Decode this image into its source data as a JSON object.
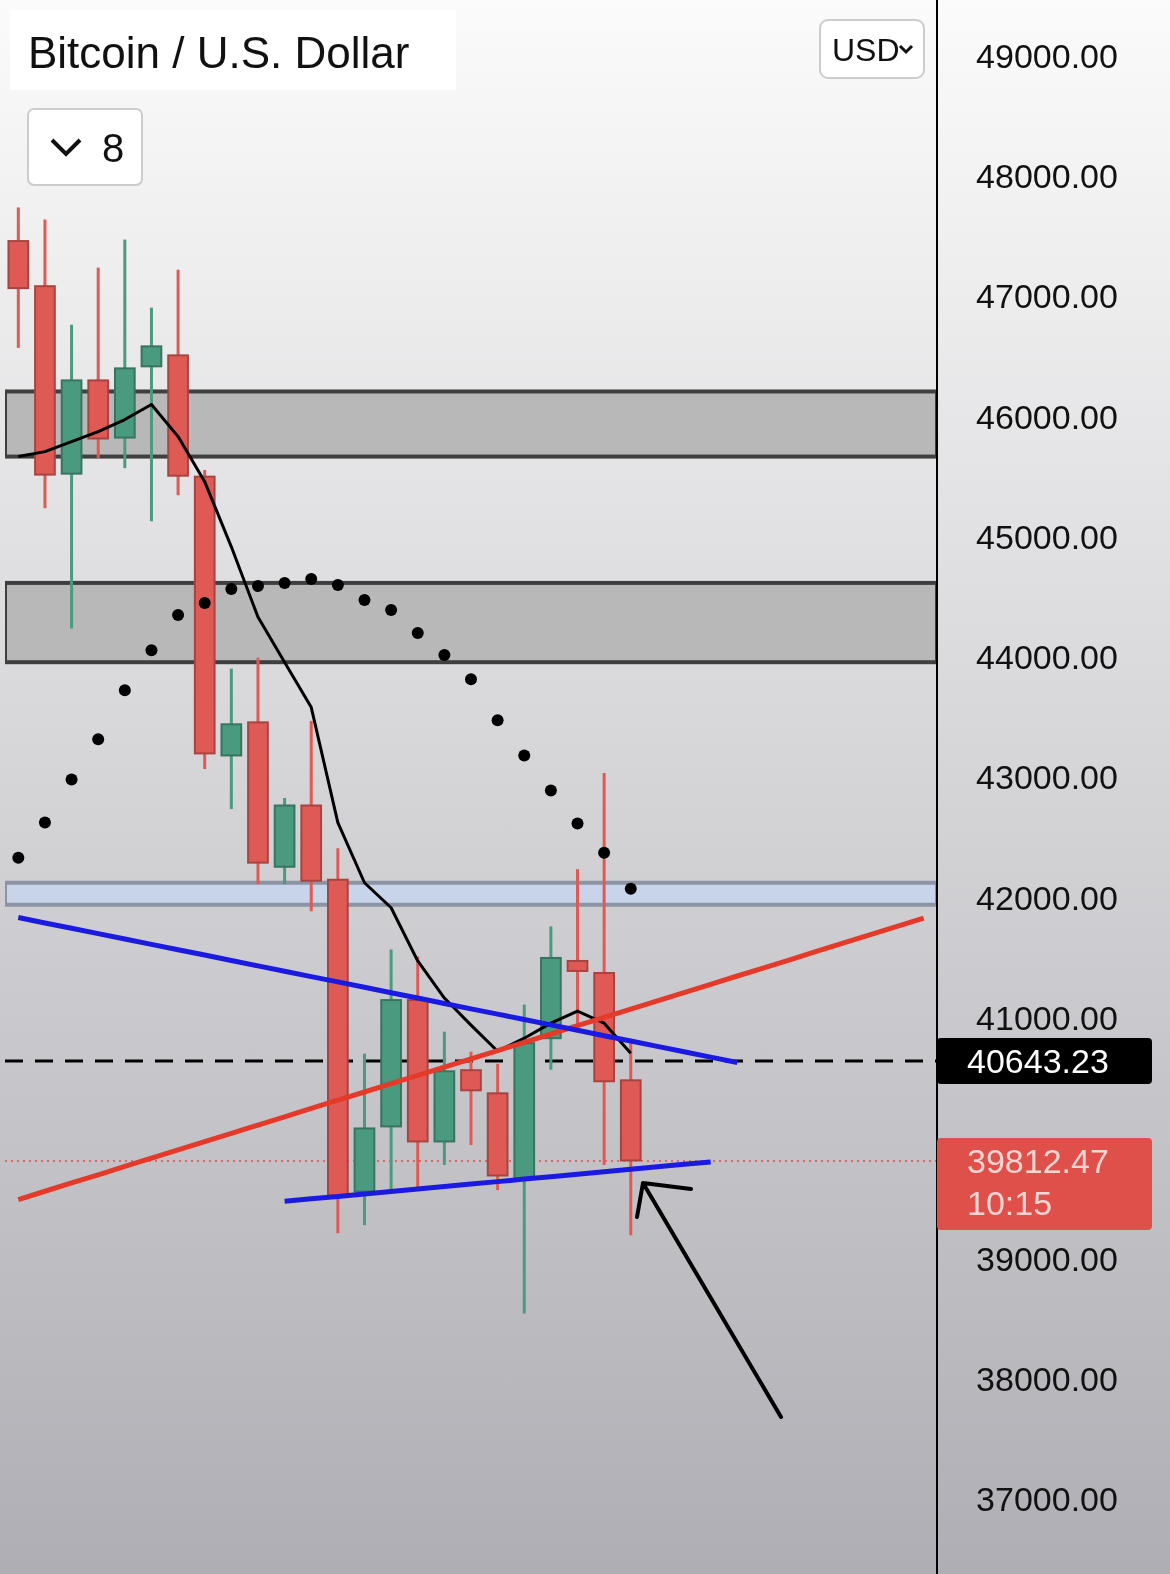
{
  "chart_data": {
    "type": "candlestick",
    "title": "Bitcoin / U.S. Dollar",
    "tick_labels": "y",
    "grid": false,
    "categories": [
      null,
      null,
      null,
      null,
      null,
      null,
      null,
      null,
      null,
      null,
      null,
      null,
      null,
      null,
      null,
      null,
      null,
      null,
      null,
      null,
      null,
      null,
      null,
      null,
      null,
      null,
      null,
      null,
      null,
      null,
      null,
      null,
      null,
      null,
      null
    ],
    "ylim": [
      36380,
      49420
    ],
    "yticks": [
      {
        "value": 37000,
        "label": "37000.00"
      },
      {
        "value": 38000,
        "label": "38000.00"
      },
      {
        "value": 39000,
        "label": "39000.00"
      },
      {
        "value": 41000,
        "label": "41000.00"
      },
      {
        "value": 42000,
        "label": "42000.00"
      },
      {
        "value": 43000,
        "label": "43000.00"
      },
      {
        "value": 44000,
        "label": "44000.00"
      },
      {
        "value": 45000,
        "label": "45000.00"
      },
      {
        "value": 46000,
        "label": "46000.00"
      },
      {
        "value": 47000,
        "label": "47000.00"
      },
      {
        "value": 48000,
        "label": "48000.00"
      },
      {
        "value": 49000,
        "label": "49000.00"
      }
    ],
    "ohlc": [
      [
        47458,
        47725,
        46583,
        47067
      ],
      [
        47083,
        47625,
        45250,
        45517
      ],
      [
        45525,
        46750,
        44250,
        46300
      ],
      [
        46300,
        47225,
        45667,
        45817
      ],
      [
        45825,
        47458,
        45583,
        46400
      ],
      [
        46417,
        46892,
        45142,
        46583
      ],
      [
        46508,
        47208,
        45358,
        45508
      ],
      [
        45500,
        45542,
        43083,
        43200
      ],
      [
        43183,
        43892,
        42750,
        43442
      ],
      [
        43458,
        43983,
        42125,
        42292
      ],
      [
        42258,
        42817,
        42125,
        42767
      ],
      [
        42767,
        43458,
        41900,
        42142
      ],
      [
        42150,
        42400,
        39225,
        39525
      ],
      [
        39558,
        40692,
        39292,
        40083
      ],
      [
        40100,
        41558,
        39583,
        41150
      ],
      [
        41150,
        41500,
        39600,
        39975
      ],
      [
        39975,
        40875,
        39792,
        40558
      ],
      [
        40567,
        40708,
        39958,
        40400
      ],
      [
        40375,
        40608,
        39583,
        39692
      ],
      [
        39667,
        41100,
        38558,
        40792
      ],
      [
        40833,
        41750,
        40583,
        41500
      ],
      [
        41475,
        42225,
        40917,
        41392
      ],
      [
        41375,
        43025,
        39792,
        40475
      ],
      [
        40483,
        40792,
        39208,
        39817
      ],
      null,
      null,
      null,
      null,
      null,
      null,
      null,
      null,
      null,
      null,
      null
    ],
    "colors": [
      "#e05a55",
      "#e05a55",
      "#4a9a80",
      "#e05a55",
      "#4a9a80",
      "#4a9a80",
      "#e05a55",
      "#e05a55",
      "#4a9a80",
      "#e05a55",
      "#4a9a80",
      "#e05a55",
      "#e05a55",
      "#4a9a80",
      "#4a9a80",
      "#e05a55",
      "#4a9a80",
      "#e05a55",
      "#e05a55",
      "#4a9a80",
      "#4a9a80",
      "#e05a55",
      "#e05a55",
      "#e05a55",
      null,
      null,
      null,
      null,
      null,
      null,
      null,
      null,
      null,
      null,
      null
    ],
    "series": [
      {
        "type": "line",
        "color": "#000000",
        "marker": "none",
        "values": [
          45667,
          45708,
          45792,
          45875,
          45975,
          46100,
          45833,
          45458,
          44917,
          44333,
          43958,
          43583,
          42625,
          42125,
          41917,
          41475,
          41167,
          40942,
          40725,
          40833,
          40958,
          41058,
          40958,
          40708,
          null,
          null,
          null,
          null,
          null,
          null,
          null,
          null,
          null,
          null,
          null
        ]
      },
      {
        "type": "scatter",
        "color": "#000000",
        "marker": "circle",
        "values": [
          42333,
          42625,
          42983,
          43317,
          43725,
          44058,
          44350,
          44450,
          44567,
          44592,
          44617,
          44650,
          44600,
          44475,
          44392,
          44200,
          44017,
          43817,
          43475,
          43183,
          42892,
          42617,
          42375,
          42075,
          null,
          null,
          null,
          null,
          null,
          null,
          null,
          null,
          null,
          null,
          null
        ]
      },
      {
        "type": "line",
        "color": "#e53a2a",
        "marker": "none",
        "values": [
          39492,
          39561,
          39630,
          39698,
          39767,
          39836,
          39905,
          39974,
          40042,
          40111,
          40180,
          40249,
          40318,
          40386,
          40455,
          40524,
          40593,
          40662,
          40730,
          40799,
          40868,
          40937,
          41006,
          41074,
          41143,
          41212,
          41281,
          41350,
          41418,
          41487,
          41556,
          41625,
          41694,
          41762,
          41831
        ]
      },
      {
        "type": "line",
        "color": "#1a1ae0",
        "marker": "none",
        "values": [
          41836,
          41791,
          41747,
          41702,
          41658,
          41613,
          41568,
          41524,
          41479,
          41434,
          41390,
          41345,
          41301,
          41256,
          41211,
          41167,
          41122,
          41077,
          41033,
          40988,
          40944,
          40899,
          40854,
          40810,
          40765,
          40720,
          40676,
          40631,
          null,
          null,
          null,
          null,
          null,
          null,
          null
        ]
      },
      {
        "type": "line",
        "color": "#1a1ae0",
        "marker": "none",
        "values": [
          null,
          null,
          null,
          null,
          null,
          null,
          null,
          null,
          null,
          null,
          39477,
          39498,
          39518,
          39539,
          39559,
          39580,
          39600,
          39621,
          39641,
          39662,
          39682,
          39703,
          39723,
          39744,
          39764,
          39785,
          39805,
          null,
          null,
          null,
          null,
          null,
          null,
          null,
          null
        ]
      }
    ],
    "bands": [
      {
        "axis": "y",
        "from": 45667,
        "to": 46208,
        "color": "#b8b8b8"
      },
      {
        "axis": "y",
        "from": 43958,
        "to": 44617,
        "color": "#b8b8b8"
      },
      {
        "axis": "y",
        "from": 41942,
        "to": 42125,
        "color": "#c8d4ea"
      }
    ],
    "ref_lines": [
      {
        "axis": "y",
        "value": 40643.23,
        "label": "40643.23",
        "color": "#000000",
        "line_style": "dashed"
      },
      {
        "axis": "y",
        "value": 39812.47,
        "label": "39812.47\n10:15",
        "color": "#e0504a",
        "line_style": "dotted"
      }
    ],
    "annotations": [
      "8",
      "USD"
    ]
  }
}
